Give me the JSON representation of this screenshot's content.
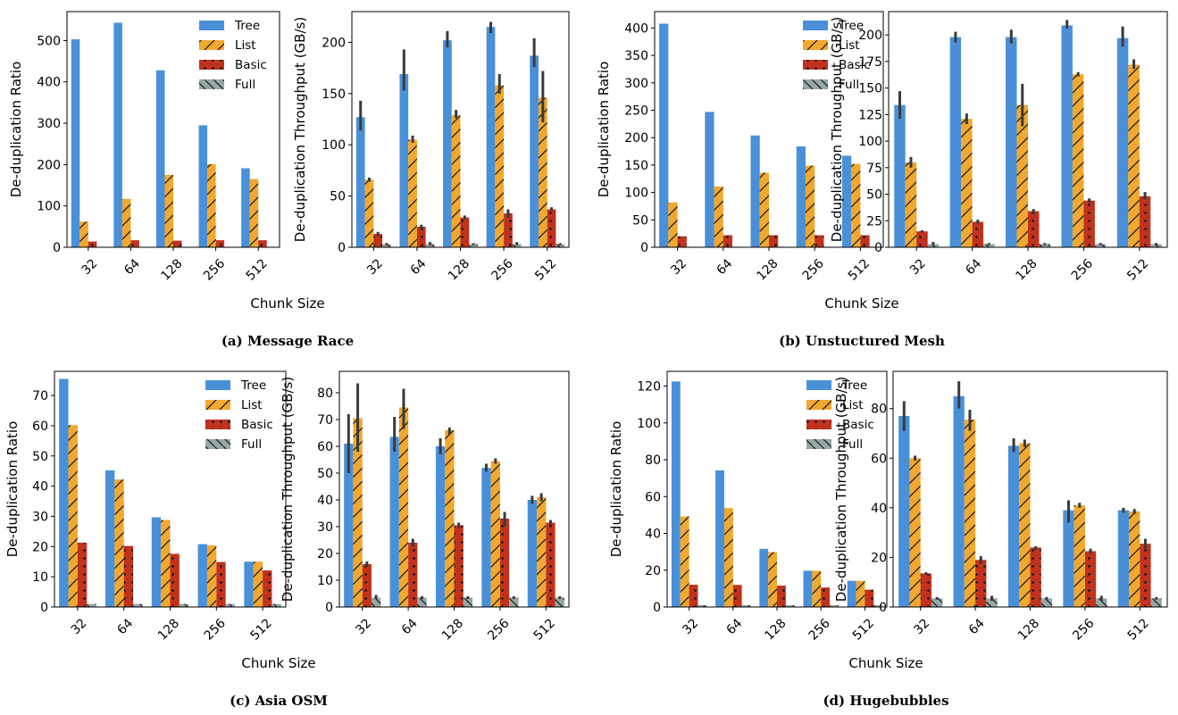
{
  "colors": {
    "Tree": "#4a90d9",
    "List": "#f0a830",
    "Basic": "#c0321e",
    "Full": "#95a8a5",
    "errorbar": "#3a3a3a"
  },
  "legend": [
    "Tree",
    "List",
    "Basic",
    "Full"
  ],
  "panels": [
    {
      "caption": "(a) Message Race",
      "xlabel": "Chunk Size",
      "charts": [
        {
          "type": "bar",
          "kind": "ratio",
          "ylabel": "De-duplication Ratio",
          "categories": [
            "32",
            "64",
            "128",
            "256",
            "512"
          ],
          "ylim": [
            0,
            570
          ],
          "yticks": [
            0,
            100,
            200,
            300,
            400,
            500
          ],
          "series": [
            {
              "name": "Tree",
              "values": [
                503,
                543,
                428,
                295,
                191
              ]
            },
            {
              "name": "List",
              "values": [
                62,
                117,
                175,
                201,
                165
              ]
            },
            {
              "name": "Basic",
              "values": [
                14,
                17,
                16,
                17,
                17
              ]
            },
            {
              "name": "Full",
              "values": [
                1,
                1,
                1,
                1,
                1
              ]
            }
          ]
        },
        {
          "type": "bar",
          "kind": "throughput",
          "ylabel": "De-duplication Throughput (GB/s)",
          "categories": [
            "32",
            "64",
            "128",
            "256",
            "512"
          ],
          "ylim": [
            0,
            230
          ],
          "yticks": [
            0,
            50,
            100,
            150,
            200
          ],
          "series": [
            {
              "name": "Tree",
              "values": [
                127,
                169,
                202,
                215,
                187
              ],
              "err": [
                [
                  114,
                  143
                ],
                [
                  153,
                  193
                ],
                [
                  195,
                  211
                ],
                [
                  209,
                  220
                ],
                [
                  176,
                  204
                ]
              ]
            },
            {
              "name": "List",
              "values": [
                66,
                105,
                129,
                158,
                146
              ],
              "err": [
                [
                  64,
                  68
                ],
                [
                  102,
                  109
                ],
                [
                  126,
                  134
                ],
                [
                  150,
                  169
                ],
                [
                  122,
                  172
                ]
              ]
            },
            {
              "name": "Basic",
              "values": [
                13,
                20,
                29,
                33,
                37
              ],
              "err": [
                [
                  11,
                  15
                ],
                [
                  18,
                  22
                ],
                [
                  27,
                  31
                ],
                [
                  29,
                  37
                ],
                [
                  36,
                  39
                ]
              ]
            },
            {
              "name": "Full",
              "values": [
                3,
                3,
                3,
                3,
                3
              ],
              "err": [
                [
                  2,
                  4
                ],
                [
                  2,
                  5
                ],
                [
                  2,
                  4
                ],
                [
                  2,
                  5
                ],
                [
                  2,
                  4
                ]
              ]
            }
          ]
        }
      ]
    },
    {
      "caption": "(b) Unstuctured Mesh",
      "xlabel": "Chunk Size",
      "charts": [
        {
          "type": "bar",
          "kind": "ratio",
          "ylabel": "De-duplication Ratio",
          "categories": [
            "32",
            "64",
            "128",
            "256",
            "512"
          ],
          "ylim": [
            0,
            430
          ],
          "yticks": [
            0,
            50,
            100,
            150,
            200,
            250,
            300,
            350,
            400
          ],
          "series": [
            {
              "name": "Tree",
              "values": [
                408,
                247,
                204,
                184,
                167
              ]
            },
            {
              "name": "List",
              "values": [
                82,
                111,
                136,
                149,
                152
              ]
            },
            {
              "name": "Basic",
              "values": [
                20,
                22,
                22,
                22,
                22
              ]
            },
            {
              "name": "Full",
              "values": [
                1,
                1,
                1,
                1,
                1
              ]
            }
          ]
        },
        {
          "type": "bar",
          "kind": "throughput",
          "ylabel": "De-duplication Throughput (GB/s)",
          "categories": [
            "32",
            "64",
            "128",
            "256",
            "512"
          ],
          "ylim": [
            0,
            222
          ],
          "yticks": [
            0,
            25,
            50,
            75,
            100,
            125,
            150,
            175,
            200
          ],
          "series": [
            {
              "name": "Tree",
              "values": [
                134,
                198,
                198,
                209,
                197
              ],
              "err": [
                [
                  121,
                  147
                ],
                [
                  193,
                  203
                ],
                [
                  192,
                  205
                ],
                [
                  206,
                  214
                ],
                [
                  189,
                  208
                ]
              ]
            },
            {
              "name": "List",
              "values": [
                80,
                121,
                134,
                163,
                172
              ],
              "err": [
                [
                  75,
                  85
                ],
                [
                  116,
                  126
                ],
                [
                  114,
                  154
                ],
                [
                  161,
                  165
                ],
                [
                  168,
                  177
                ]
              ]
            },
            {
              "name": "Basic",
              "values": [
                15,
                24,
                34,
                44,
                48
              ],
              "err": [
                [
                  14,
                  16
                ],
                [
                  22,
                  26
                ],
                [
                  31,
                  36
                ],
                [
                  42,
                  46
                ],
                [
                  45,
                  52
                ]
              ]
            },
            {
              "name": "Full",
              "values": [
                3,
                3,
                3,
                3,
                3
              ],
              "err": [
                [
                  2,
                  5
                ],
                [
                  2,
                  4
                ],
                [
                  2,
                  4
                ],
                [
                  2,
                  4
                ],
                [
                  2,
                  4
                ]
              ]
            }
          ]
        }
      ]
    },
    {
      "caption": "(c) Asia OSM",
      "xlabel": "Chunk Size",
      "charts": [
        {
          "type": "bar",
          "kind": "ratio",
          "ylabel": "De-duplication Ratio",
          "categories": [
            "32",
            "64",
            "128",
            "256",
            "512"
          ],
          "ylim": [
            0,
            78
          ],
          "yticks": [
            0,
            10,
            20,
            30,
            40,
            50,
            60,
            70
          ],
          "series": [
            {
              "name": "Tree",
              "values": [
                75.5,
                45.2,
                29.7,
                20.8,
                15.0
              ]
            },
            {
              "name": "List",
              "values": [
                60.2,
                42.2,
                28.8,
                20.4,
                15.0
              ]
            },
            {
              "name": "Basic",
              "values": [
                21.3,
                20.2,
                17.6,
                14.9,
                12.1
              ]
            },
            {
              "name": "Full",
              "values": [
                1,
                1,
                1,
                1,
                1
              ]
            }
          ]
        },
        {
          "type": "bar",
          "kind": "throughput",
          "ylabel": "De-duplication Throughput (GB/s)",
          "categories": [
            "32",
            "64",
            "128",
            "256",
            "512"
          ],
          "ylim": [
            0,
            88
          ],
          "yticks": [
            0,
            10,
            20,
            30,
            40,
            50,
            60,
            70,
            80
          ],
          "series": [
            {
              "name": "Tree",
              "values": [
                61,
                63.5,
                60,
                52,
                40
              ],
              "err": [
                [
                  50,
                  72
                ],
                [
                  58,
                  71
                ],
                [
                  57,
                  63
                ],
                [
                  50.5,
                  53.5
                ],
                [
                  38.5,
                  41.5
                ]
              ]
            },
            {
              "name": "List",
              "values": [
                70.5,
                74.5,
                66,
                54.5,
                41
              ],
              "err": [
                [
                  58,
                  83.5
                ],
                [
                  66.5,
                  81.5
                ],
                [
                  64.5,
                  67
                ],
                [
                  53.5,
                  55.5
                ],
                [
                  39.5,
                  42.5
                ]
              ]
            },
            {
              "name": "Basic",
              "values": [
                16,
                24,
                30.5,
                33,
                31.5
              ],
              "err": [
                [
                  15,
                  17
                ],
                [
                  22.5,
                  25.5
                ],
                [
                  29.5,
                  31.5
                ],
                [
                  30,
                  35.5
                ],
                [
                  30.5,
                  32.5
                ]
              ]
            },
            {
              "name": "Full",
              "values": [
                3.5,
                3.5,
                3.5,
                3.5,
                3.5
              ],
              "err": [
                [
                  3,
                  4.5
                ],
                [
                  3,
                  4
                ],
                [
                  3,
                  4
                ],
                [
                  3,
                  4
                ],
                [
                  3,
                  4
                ]
              ]
            }
          ]
        }
      ]
    },
    {
      "caption": "(d) Hugebubbles",
      "xlabel": "Chunk Size",
      "charts": [
        {
          "type": "bar",
          "kind": "ratio",
          "ylabel": "De-duplication Ratio",
          "categories": [
            "32",
            "64",
            "128",
            "256",
            "512"
          ],
          "ylim": [
            0,
            128
          ],
          "yticks": [
            0,
            20,
            40,
            60,
            80,
            100,
            120
          ],
          "series": [
            {
              "name": "Tree",
              "values": [
                122.5,
                74.2,
                31.6,
                19.7,
                14.2
              ]
            },
            {
              "name": "List",
              "values": [
                49.2,
                53.7,
                29.8,
                19.7,
                14.2
              ]
            },
            {
              "name": "Basic",
              "values": [
                12.1,
                12.0,
                11.6,
                10.6,
                9.4
              ]
            },
            {
              "name": "Full",
              "values": [
                1,
                1,
                1,
                1,
                1
              ]
            }
          ]
        },
        {
          "type": "bar",
          "kind": "throughput",
          "ylabel": "De-duplication Throughput (GB/s)",
          "categories": [
            "32",
            "64",
            "128",
            "256",
            "512"
          ],
          "ylim": [
            0,
            95
          ],
          "yticks": [
            0,
            20,
            40,
            60,
            80
          ],
          "series": [
            {
              "name": "Tree",
              "values": [
                77,
                85,
                65,
                39,
                39
              ],
              "err": [
                [
                  71,
                  83
                ],
                [
                  80,
                  91
                ],
                [
                  62.5,
                  68
                ],
                [
                  34,
                  43
                ],
                [
                  38,
                  40
                ]
              ]
            },
            {
              "name": "List",
              "values": [
                60,
                75.5,
                66,
                41,
                38.5
              ],
              "err": [
                [
                  59,
                  61
                ],
                [
                  71,
                  79.5
                ],
                [
                  64.5,
                  67.5
                ],
                [
                  40,
                  42
                ],
                [
                  37.5,
                  39.5
                ]
              ]
            },
            {
              "name": "Basic",
              "values": [
                13.5,
                19,
                24,
                22.5,
                25.5
              ],
              "err": [
                [
                  13,
                  14
                ],
                [
                  17.5,
                  20.5
                ],
                [
                  23,
                  24.5
                ],
                [
                  21.5,
                  23.5
                ],
                [
                  23.5,
                  27.5
                ]
              ]
            },
            {
              "name": "Full",
              "values": [
                3.5,
                3.5,
                3.5,
                3.5,
                3.5
              ],
              "err": [
                [
                  3,
                  4
                ],
                [
                  2.5,
                  4.5
                ],
                [
                  3,
                  4
                ],
                [
                  2.5,
                  4.5
                ],
                [
                  3,
                  4
                ]
              ]
            }
          ]
        }
      ]
    }
  ]
}
